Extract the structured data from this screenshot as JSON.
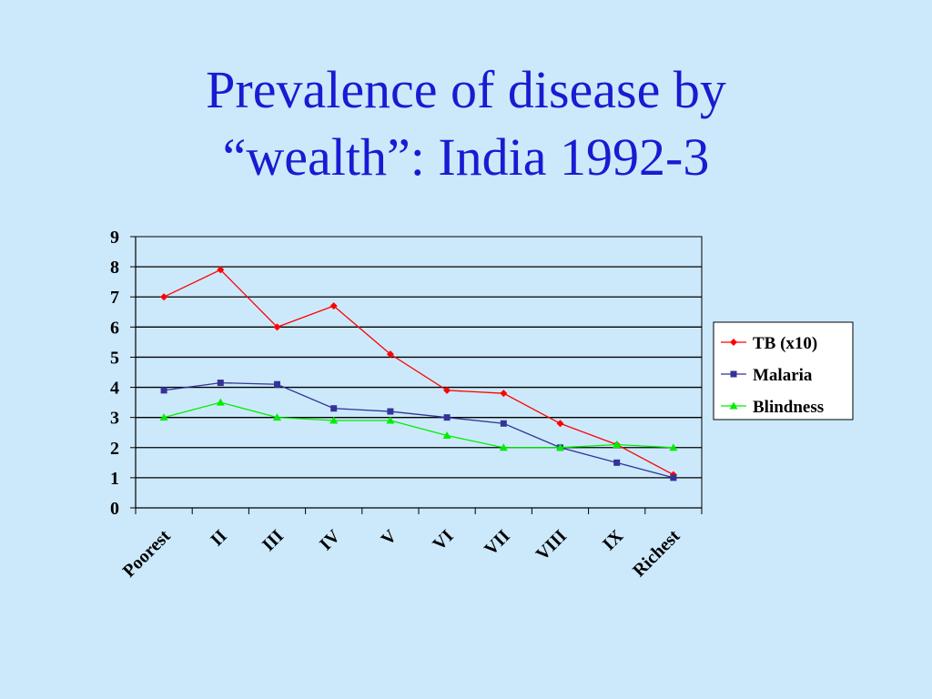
{
  "title": {
    "line1": "Prevalence of disease by",
    "line2": "“wealth”: India 1992-3"
  },
  "chart_data": {
    "type": "line",
    "categories": [
      "Poorest",
      "II",
      "III",
      "IV",
      "V",
      "VI",
      "VII",
      "VIII",
      "IX",
      "Richest"
    ],
    "ylim": [
      0,
      9
    ],
    "yticks": [
      0,
      1,
      2,
      3,
      4,
      5,
      6,
      7,
      8,
      9
    ],
    "grid": true,
    "legend_position": "right",
    "series": [
      {
        "name": "TB (x10)",
        "color": "#ff0000",
        "marker": "diamond",
        "values": [
          7.0,
          7.9,
          6.0,
          6.7,
          5.1,
          3.9,
          3.8,
          2.8,
          2.1,
          1.1
        ]
      },
      {
        "name": "Malaria",
        "color": "#333399",
        "marker": "square",
        "values": [
          3.9,
          4.15,
          4.1,
          3.3,
          3.2,
          3.0,
          2.8,
          2.0,
          1.5,
          1.0
        ]
      },
      {
        "name": "Blindness",
        "color": "#00ee00",
        "marker": "triangle",
        "values": [
          3.0,
          3.5,
          3.0,
          2.9,
          2.9,
          2.4,
          2.0,
          2.0,
          2.1,
          2.0
        ]
      }
    ]
  }
}
